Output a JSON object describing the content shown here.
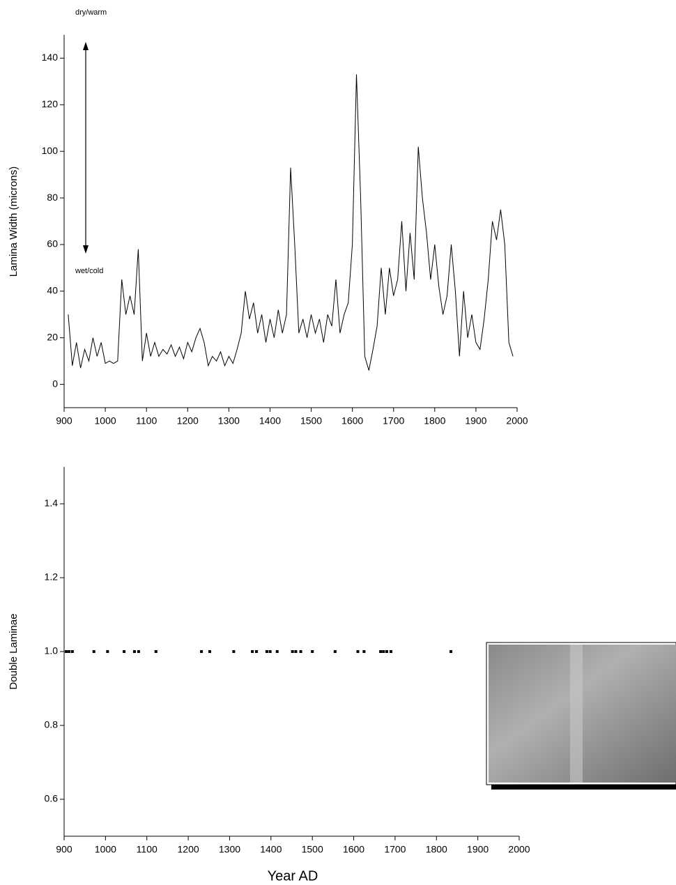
{
  "chart_data": [
    {
      "type": "line",
      "ylabel": "Lamina Width (microns)",
      "annotations": [
        "dry/warm",
        "wet/cold"
      ],
      "color": "#000000",
      "x": [
        910,
        920,
        930,
        940,
        950,
        960,
        970,
        980,
        990,
        1000,
        1010,
        1020,
        1030,
        1040,
        1050,
        1060,
        1070,
        1080,
        1090,
        1100,
        1110,
        1120,
        1130,
        1140,
        1150,
        1160,
        1170,
        1180,
        1190,
        1200,
        1210,
        1220,
        1230,
        1240,
        1250,
        1260,
        1270,
        1280,
        1290,
        1300,
        1310,
        1320,
        1330,
        1340,
        1350,
        1360,
        1370,
        1380,
        1390,
        1400,
        1410,
        1420,
        1430,
        1440,
        1450,
        1460,
        1470,
        1480,
        1490,
        1500,
        1510,
        1520,
        1530,
        1540,
        1550,
        1560,
        1570,
        1580,
        1590,
        1600,
        1610,
        1620,
        1630,
        1640,
        1650,
        1660,
        1670,
        1680,
        1690,
        1700,
        1710,
        1720,
        1730,
        1740,
        1750,
        1760,
        1770,
        1780,
        1790,
        1800,
        1810,
        1820,
        1830,
        1840,
        1850,
        1860,
        1870,
        1880,
        1890,
        1900,
        1910,
        1920,
        1930,
        1940,
        1950,
        1960,
        1970,
        1980,
        1990
      ],
      "values": [
        30,
        8,
        18,
        7,
        15,
        10,
        20,
        12,
        18,
        9,
        10,
        9,
        10,
        45,
        30,
        38,
        30,
        58,
        10,
        22,
        12,
        18,
        12,
        15,
        13,
        17,
        12,
        16,
        11,
        18,
        14,
        20,
        24,
        18,
        8,
        12,
        10,
        14,
        8,
        12,
        9,
        15,
        22,
        40,
        28,
        35,
        22,
        30,
        18,
        28,
        20,
        32,
        22,
        30,
        93,
        60,
        22,
        28,
        20,
        30,
        22,
        28,
        18,
        30,
        25,
        45,
        22,
        30,
        35,
        60,
        133,
        80,
        12,
        6,
        15,
        25,
        50,
        30,
        50,
        38,
        45,
        70,
        40,
        65,
        45,
        102,
        80,
        65,
        45,
        60,
        42,
        30,
        38,
        60,
        40,
        12,
        40,
        20,
        30,
        18,
        15,
        28,
        45,
        70,
        62,
        75,
        60,
        18,
        12
      ],
      "xlim": [
        900,
        2000
      ],
      "xticks": [
        900,
        1000,
        1100,
        1200,
        1300,
        1400,
        1500,
        1600,
        1700,
        1800,
        1900,
        2000
      ],
      "ylim": [
        -10,
        150
      ],
      "yticks": [
        0,
        20,
        40,
        60,
        80,
        100,
        120,
        140
      ]
    },
    {
      "type": "scatter",
      "xlabel": "Year AD",
      "ylabel": "Double Laminae",
      "color": "#000000",
      "x": [
        905,
        912,
        920,
        972,
        1005,
        1045,
        1070,
        1080,
        1122,
        1232,
        1252,
        1310,
        1355,
        1365,
        1390,
        1398,
        1415,
        1452,
        1460,
        1472,
        1500,
        1555,
        1610,
        1625,
        1665,
        1672,
        1680,
        1690,
        1835
      ],
      "values": [
        1,
        1,
        1,
        1,
        1,
        1,
        1,
        1,
        1,
        1,
        1,
        1,
        1,
        1,
        1,
        1,
        1,
        1,
        1,
        1,
        1,
        1,
        1,
        1,
        1,
        1,
        1,
        1,
        1
      ],
      "xlim": [
        900,
        2000
      ],
      "xticks": [
        900,
        1000,
        1100,
        1200,
        1300,
        1400,
        1500,
        1600,
        1700,
        1800,
        1900,
        2000
      ],
      "ylim": [
        0.5,
        1.5
      ],
      "yticks": [
        0.6,
        0.8,
        {
          "value": 1,
          "label": "1.0"
        },
        1.2,
        1.4
      ]
    }
  ]
}
